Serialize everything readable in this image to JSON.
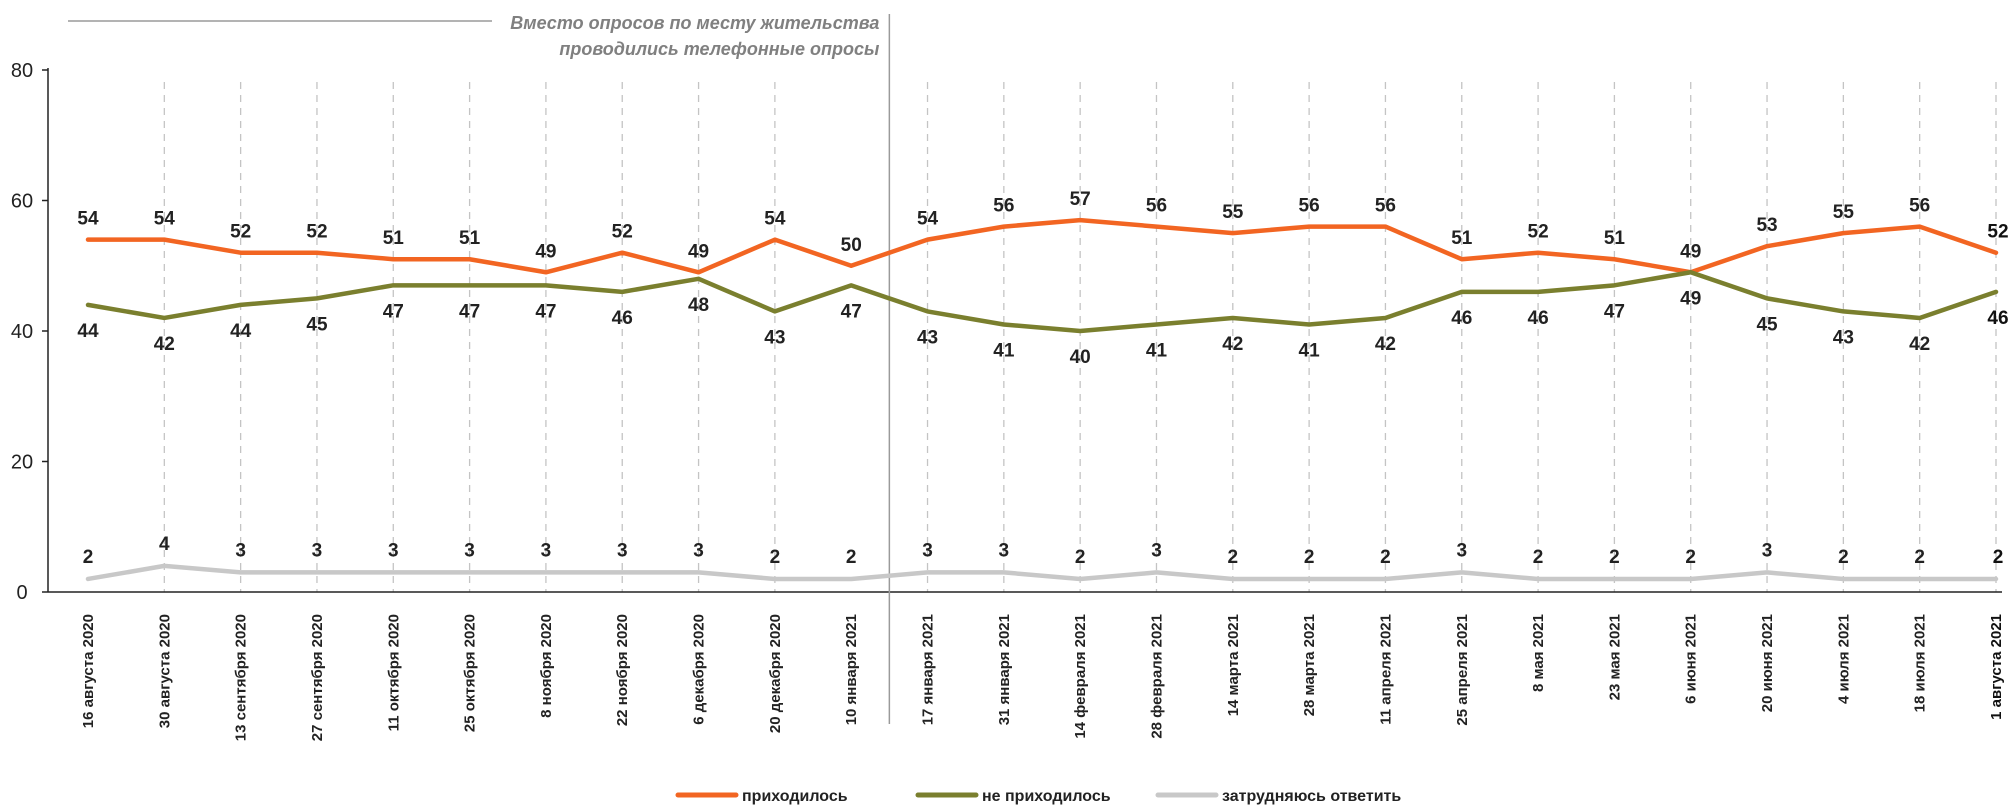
{
  "chart_data": {
    "type": "line",
    "annotation": {
      "line1": "Вместо опросов по месту жительства",
      "line2": "проводились телефонные опросы",
      "after_category_index": 10
    },
    "ylim": [
      0,
      80
    ],
    "yticks": [
      0,
      20,
      40,
      60,
      80
    ],
    "grid": "vertical dashed",
    "legend_position": "bottom",
    "categories": [
      "16 августа 2020",
      "30 августа 2020",
      "13 сентября 2020",
      "27 сентября 2020",
      "11 октября 2020",
      "25 октября 2020",
      "8 ноября 2020",
      "22 ноября 2020",
      "6 декабря 2020",
      "20 декабря 2020",
      "10 января 2021",
      "17 января 2021",
      "31 января 2021",
      "14 февраля 2021",
      "28 февраля 2021",
      "14 марта 2021",
      "28 марта 2021",
      "11 апреля 2021",
      "25 апреля 2021",
      "8 мая 2021",
      "23 мая 2021",
      "6 июня 2021",
      "20 июня 2021",
      "4 июля 2021",
      "18 июля 2021",
      "1 августа 2021"
    ],
    "series": [
      {
        "name": "приходилось",
        "color": "#f26522",
        "values": [
          54,
          54,
          52,
          52,
          51,
          51,
          49,
          52,
          49,
          54,
          50,
          54,
          56,
          57,
          56,
          55,
          56,
          56,
          51,
          52,
          51,
          49,
          53,
          55,
          56,
          52
        ]
      },
      {
        "name": "не приходилось",
        "color": "#7a7f2e",
        "values": [
          44,
          42,
          44,
          45,
          47,
          47,
          47,
          46,
          48,
          43,
          47,
          43,
          41,
          40,
          41,
          42,
          41,
          42,
          46,
          46,
          47,
          49,
          45,
          43,
          42,
          46
        ]
      },
      {
        "name": "затрудняюсь ответить",
        "color": "#c8c8c8",
        "values": [
          2,
          4,
          3,
          3,
          3,
          3,
          3,
          3,
          3,
          2,
          2,
          3,
          3,
          2,
          3,
          2,
          2,
          2,
          3,
          2,
          2,
          2,
          3,
          2,
          2,
          2
        ]
      }
    ]
  }
}
